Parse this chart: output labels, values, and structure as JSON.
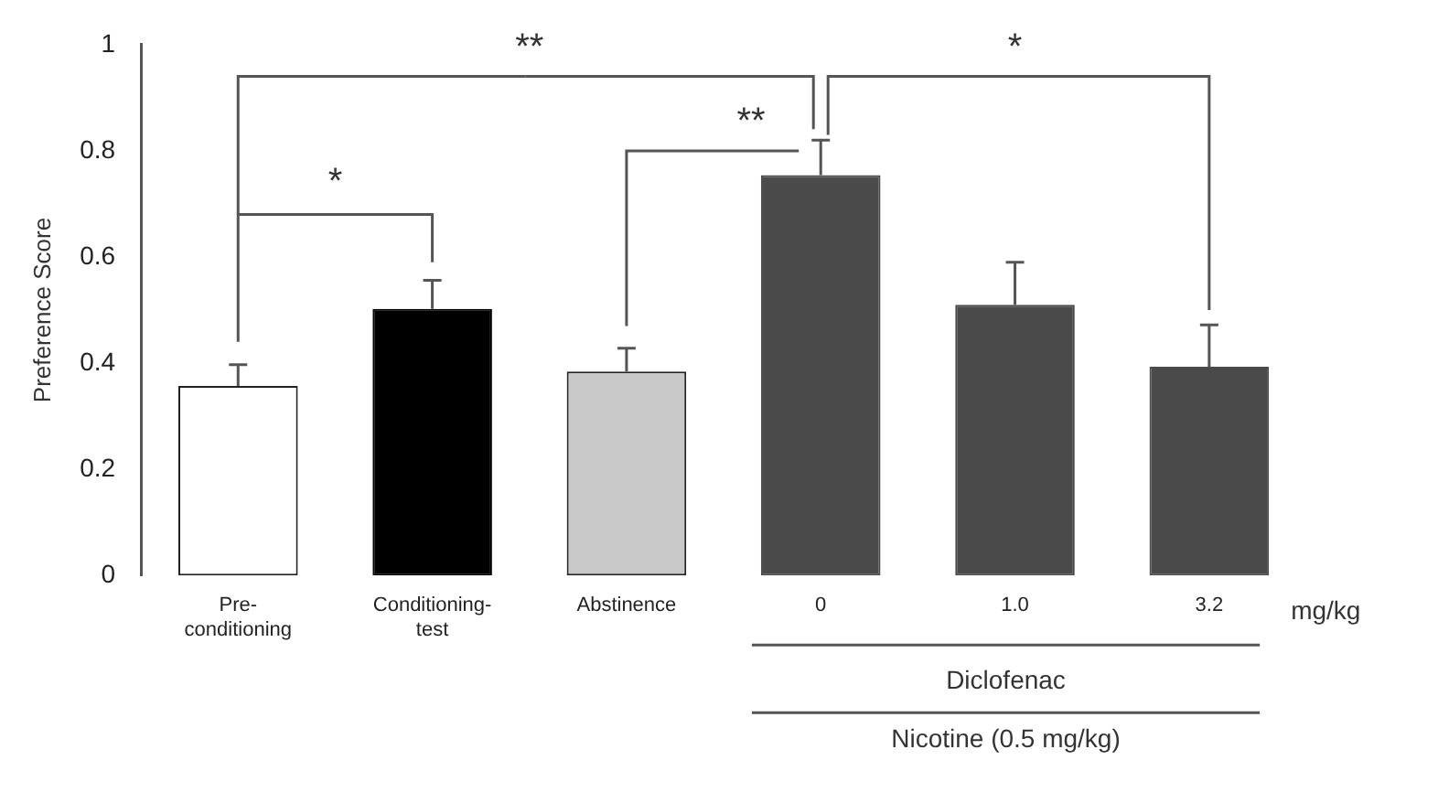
{
  "chart_data": {
    "type": "bar",
    "ylabel": "Preference Score",
    "categories": [
      "Pre-conditioning",
      "Conditioning-test",
      "Abstinence",
      "0",
      "1.0",
      "3.2"
    ],
    "values": [
      0.357,
      0.502,
      0.384,
      0.754,
      0.51,
      0.393
    ],
    "colors": [
      "#ffffff",
      "#000000",
      "#c8c8c8",
      "#4a4a4a",
      "#4a4a4a",
      "#4a4a4a"
    ],
    "errors": [
      0.04,
      0.054,
      0.044,
      0.066,
      0.08,
      0.079
    ],
    "ylim": [
      0,
      1
    ],
    "yticks": [
      0,
      0.2,
      0.4,
      0.6,
      0.8,
      1
    ],
    "grid": false,
    "legend": false,
    "annotations": [
      {
        "text": "**",
        "x": "0",
        "y": 0.82
      },
      "*",
      "**",
      "*",
      "mg/kg",
      "Diclofenac",
      "Nicotine (0.5 mg/kg)"
    ]
  }
}
